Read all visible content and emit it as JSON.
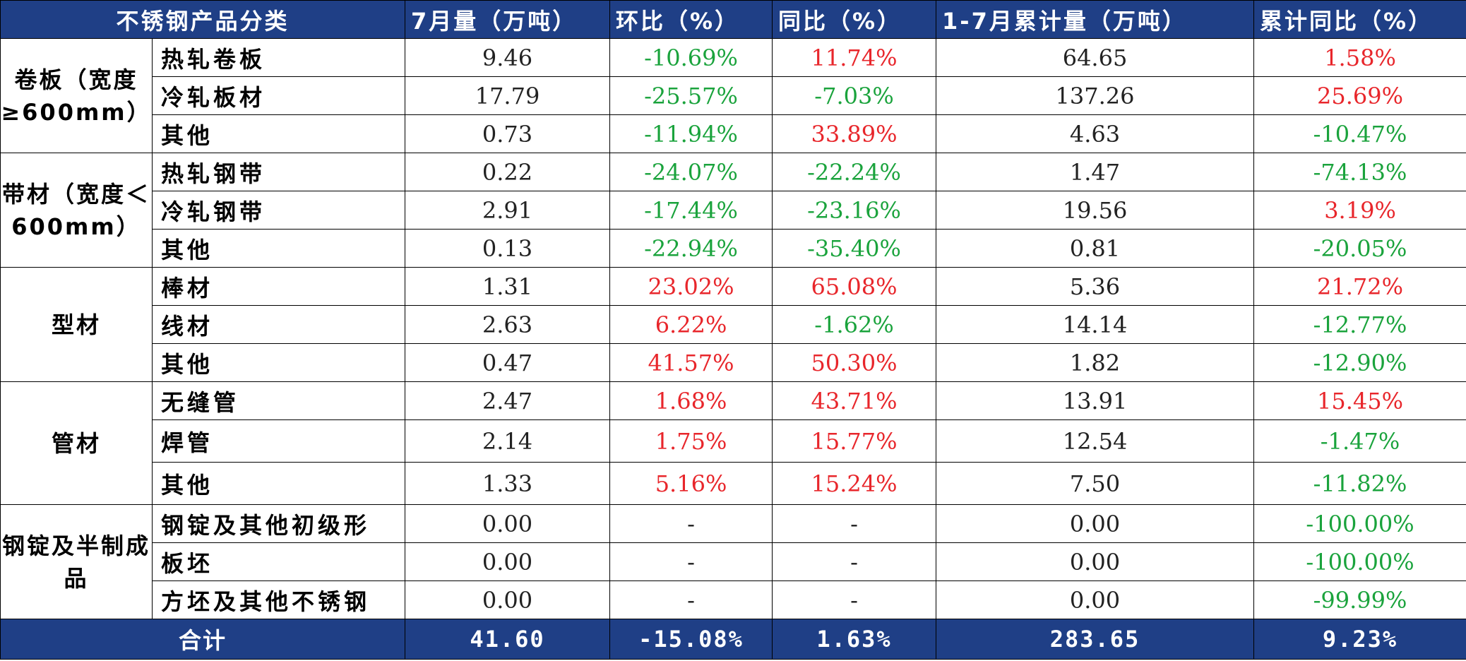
{
  "headers": {
    "category": "不锈钢产品分类",
    "july_volume": "7月量（万吨）",
    "mom": "环比（%）",
    "yoy": "同比（%）",
    "ytd_volume": "1-7月累计量（万吨）",
    "ytd_yoy": "累计同比（%）"
  },
  "groups": {
    "g1": "卷板（宽度≥600mm）",
    "g2": "带材（宽度＜600mm）",
    "g3": "型材",
    "g4": "管材",
    "g5": "钢锭及半制成品"
  },
  "rows": [
    {
      "product": "热轧卷板",
      "july": "9.46",
      "mom": "-10.69%",
      "yoy": "11.74%",
      "ytd": "64.65",
      "ytd_yoy": "1.58%"
    },
    {
      "product": "冷轧板材",
      "july": "17.79",
      "mom": "-25.57%",
      "yoy": "-7.03%",
      "ytd": "137.26",
      "ytd_yoy": "25.69%"
    },
    {
      "product": "其他",
      "july": "0.73",
      "mom": "-11.94%",
      "yoy": "33.89%",
      "ytd": "4.63",
      "ytd_yoy": "-10.47%"
    },
    {
      "product": "热轧钢带",
      "july": "0.22",
      "mom": "-24.07%",
      "yoy": "-22.24%",
      "ytd": "1.47",
      "ytd_yoy": "-74.13%"
    },
    {
      "product": "冷轧钢带",
      "july": "2.91",
      "mom": "-17.44%",
      "yoy": "-23.16%",
      "ytd": "19.56",
      "ytd_yoy": "3.19%"
    },
    {
      "product": "其他",
      "july": "0.13",
      "mom": "-22.94%",
      "yoy": "-35.40%",
      "ytd": "0.81",
      "ytd_yoy": "-20.05%"
    },
    {
      "product": "棒材",
      "july": "1.31",
      "mom": "23.02%",
      "yoy": "65.08%",
      "ytd": "5.36",
      "ytd_yoy": "21.72%"
    },
    {
      "product": "线材",
      "july": "2.63",
      "mom": "6.22%",
      "yoy": "-1.62%",
      "ytd": "14.14",
      "ytd_yoy": "-12.77%"
    },
    {
      "product": "其他",
      "july": "0.47",
      "mom": "41.57%",
      "yoy": "50.30%",
      "ytd": "1.82",
      "ytd_yoy": "-12.90%"
    },
    {
      "product": "无缝管",
      "july": "2.47",
      "mom": "1.68%",
      "yoy": "43.71%",
      "ytd": "13.91",
      "ytd_yoy": "15.45%"
    },
    {
      "product": "焊管",
      "july": "2.14",
      "mom": "1.75%",
      "yoy": "15.77%",
      "ytd": "12.54",
      "ytd_yoy": "-1.47%"
    },
    {
      "product": "其他",
      "july": "1.33",
      "mom": "5.16%",
      "yoy": "15.24%",
      "ytd": "7.50",
      "ytd_yoy": "-11.82%"
    },
    {
      "product": "钢锭及其他初级形",
      "july": "0.00",
      "mom": "-",
      "yoy": "-",
      "ytd": "0.00",
      "ytd_yoy": "-100.00%"
    },
    {
      "product": "板坯",
      "july": "0.00",
      "mom": "-",
      "yoy": "-",
      "ytd": "0.00",
      "ytd_yoy": "-100.00%"
    },
    {
      "product": "方坯及其他不锈钢",
      "july": "0.00",
      "mom": "-",
      "yoy": "-",
      "ytd": "0.00",
      "ytd_yoy": "-99.99%"
    }
  ],
  "total": {
    "label": "合计",
    "july": "41.60",
    "mom": "-15.08%",
    "yoy": "1.63%",
    "ytd": "283.65",
    "ytd_yoy": "9.23%"
  },
  "colors": {
    "header_bg": "#1f3f86",
    "positive": "#e8262b",
    "negative": "#1aa33c"
  }
}
